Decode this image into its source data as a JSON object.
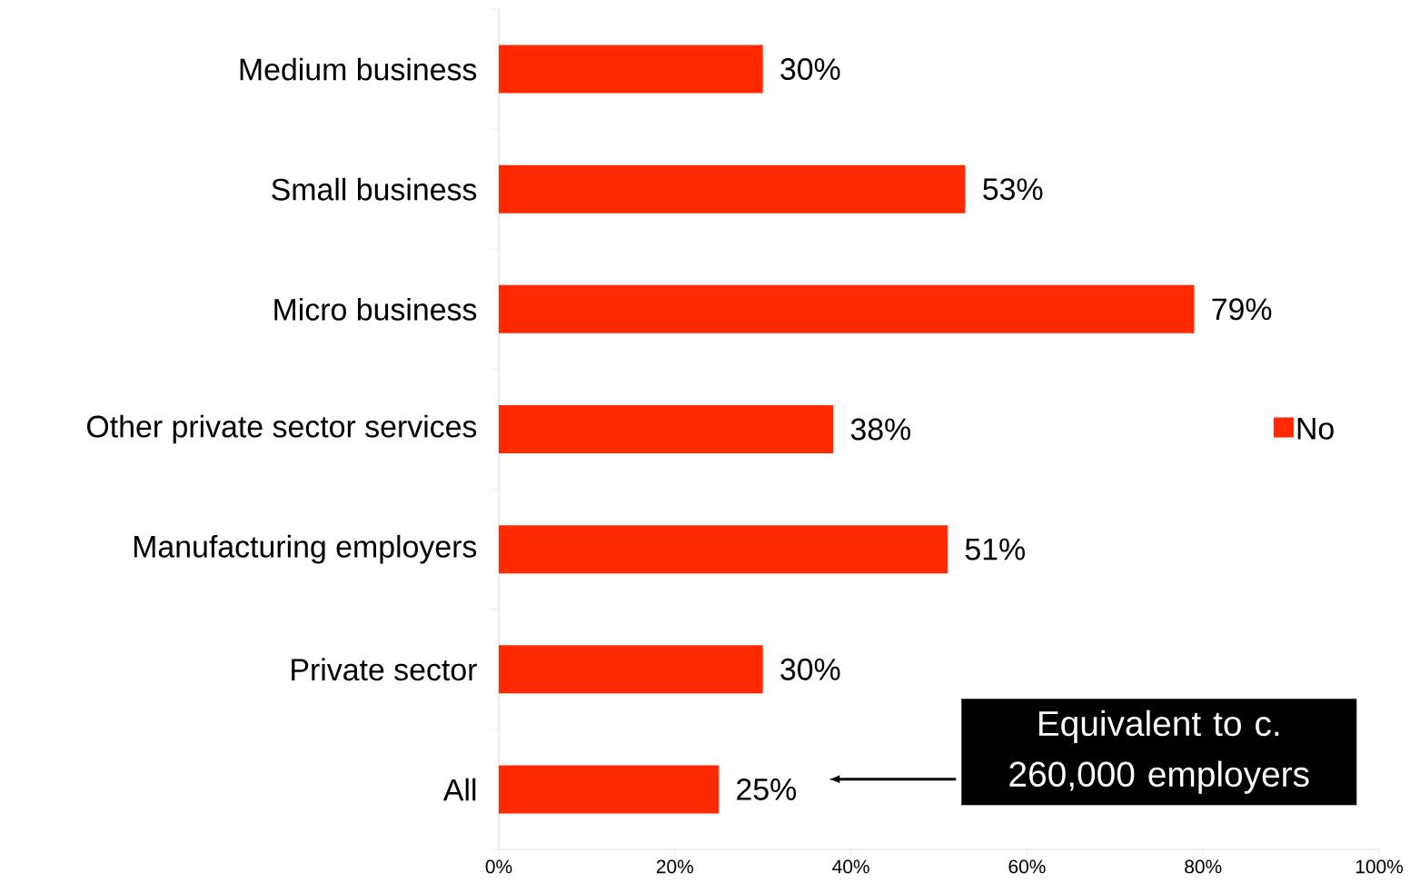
{
  "chart_data": {
    "type": "bar",
    "orientation": "horizontal",
    "categories": [
      "Medium business",
      "Small business",
      "Micro business",
      "Other private sector services",
      "Manufacturing employers",
      "Private sector",
      "All"
    ],
    "series": [
      {
        "name": "No",
        "color": "#ff2a00",
        "values": [
          30,
          53,
          79,
          38,
          51,
          30,
          25
        ],
        "value_labels": [
          "30%",
          "53%",
          "79%",
          "38%",
          "51%",
          "30%",
          "25%"
        ]
      }
    ],
    "xlim": [
      0,
      100
    ],
    "xticks": [
      {
        "value": 0,
        "label": "0%"
      },
      {
        "value": 20,
        "label": "20%"
      },
      {
        "value": 40,
        "label": "40%"
      },
      {
        "value": 60,
        "label": "60%"
      },
      {
        "value": 80,
        "label": "80%"
      },
      {
        "value": 100,
        "label": "100%"
      }
    ],
    "legend": "right",
    "annotations": [
      "Equivalent to c. 260,000 employers"
    ]
  }
}
